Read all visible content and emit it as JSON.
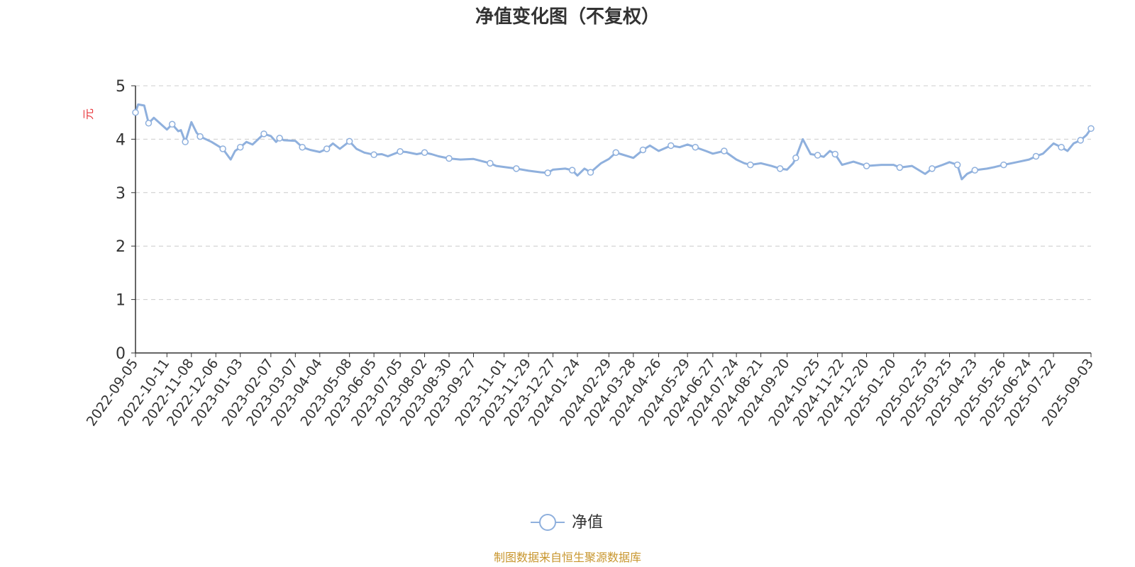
{
  "chart_data": {
    "type": "line",
    "title": "净值变化图（不复权）",
    "ylabel": "元",
    "ylim": [
      0,
      5
    ],
    "yticks": [
      0,
      1,
      2,
      3,
      4,
      5
    ],
    "grid": "horizontal-dashed",
    "legend_placement": "bottom-center",
    "source_note": "制图数据来自恒生聚源数据库",
    "colors": {
      "line": "#8fb0dd",
      "title": "#333333",
      "ylabel": "#e8383d",
      "source": "#c8962e",
      "axis": "#333333",
      "grid": "#cccccc"
    },
    "x_ticks": [
      "2022-09-05",
      "2022-10-11",
      "2022-11-08",
      "2022-12-06",
      "2023-01-03",
      "2023-02-07",
      "2023-03-07",
      "2023-04-04",
      "2023-05-08",
      "2023-06-05",
      "2023-07-05",
      "2023-08-02",
      "2023-08-30",
      "2023-09-27",
      "2023-11-01",
      "2023-11-29",
      "2023-12-27",
      "2024-01-24",
      "2024-02-29",
      "2024-03-28",
      "2024-04-26",
      "2024-05-29",
      "2024-06-27",
      "2024-07-24",
      "2024-08-21",
      "2024-09-20",
      "2024-10-25",
      "2024-11-22",
      "2024-12-20",
      "2025-01-20",
      "2025-02-25",
      "2025-03-25",
      "2025-04-23",
      "2025-05-26",
      "2025-06-24",
      "2025-07-22",
      "2025-09-03"
    ],
    "series": [
      {
        "name": "净值",
        "x": [
          "2022-09-05",
          "2022-09-08",
          "2022-09-15",
          "2022-09-20",
          "2022-09-26",
          "2022-10-11",
          "2022-10-17",
          "2022-10-24",
          "2022-10-27",
          "2022-11-01",
          "2022-11-08",
          "2022-11-14",
          "2022-11-18",
          "2022-12-01",
          "2022-12-06",
          "2022-12-14",
          "2022-12-23",
          "2022-12-28",
          "2023-01-03",
          "2023-01-10",
          "2023-01-17",
          "2023-01-30",
          "2023-02-07",
          "2023-02-13",
          "2023-02-17",
          "2023-02-22",
          "2023-03-07",
          "2023-03-15",
          "2023-03-24",
          "2023-04-04",
          "2023-04-12",
          "2023-04-19",
          "2023-04-27",
          "2023-05-08",
          "2023-05-16",
          "2023-05-25",
          "2023-06-05",
          "2023-06-14",
          "2023-06-21",
          "2023-07-05",
          "2023-07-12",
          "2023-07-24",
          "2023-08-02",
          "2023-08-10",
          "2023-08-18",
          "2023-08-30",
          "2023-09-12",
          "2023-09-27",
          "2023-10-16",
          "2023-10-23",
          "2023-11-01",
          "2023-11-15",
          "2023-11-29",
          "2023-12-13",
          "2023-12-21",
          "2023-12-27",
          "2024-01-10",
          "2024-01-18",
          "2024-01-24",
          "2024-02-01",
          "2024-02-08",
          "2024-02-20",
          "2024-02-29",
          "2024-03-08",
          "2024-03-14",
          "2024-03-28",
          "2024-04-08",
          "2024-04-16",
          "2024-04-26",
          "2024-05-10",
          "2024-05-20",
          "2024-05-29",
          "2024-06-07",
          "2024-06-19",
          "2024-06-27",
          "2024-07-10",
          "2024-07-24",
          "2024-08-02",
          "2024-08-09",
          "2024-08-21",
          "2024-09-02",
          "2024-09-12",
          "2024-09-20",
          "2024-09-27",
          "2024-09-30",
          "2024-10-08",
          "2024-10-17",
          "2024-10-25",
          "2024-11-01",
          "2024-11-08",
          "2024-11-14",
          "2024-11-22",
          "2024-12-05",
          "2024-12-20",
          "2025-01-06",
          "2025-01-20",
          "2025-01-27",
          "2025-02-10",
          "2025-02-25",
          "2025-03-05",
          "2025-03-17",
          "2025-03-25",
          "2025-04-03",
          "2025-04-08",
          "2025-04-14",
          "2025-04-23",
          "2025-05-07",
          "2025-05-16",
          "2025-05-26",
          "2025-06-10",
          "2025-06-24",
          "2025-07-02",
          "2025-07-10",
          "2025-07-22",
          "2025-07-31",
          "2025-08-07",
          "2025-08-14",
          "2025-08-22",
          "2025-08-29",
          "2025-09-03"
        ],
        "y": [
          4.5,
          4.65,
          4.63,
          4.3,
          4.4,
          4.18,
          4.28,
          4.15,
          4.17,
          3.95,
          4.32,
          4.12,
          4.05,
          3.95,
          3.9,
          3.82,
          3.62,
          3.78,
          3.85,
          3.95,
          3.9,
          4.1,
          4.06,
          3.95,
          4.02,
          3.98,
          3.97,
          3.85,
          3.8,
          3.76,
          3.82,
          3.92,
          3.82,
          3.96,
          3.82,
          3.75,
          3.71,
          3.72,
          3.68,
          3.77,
          3.76,
          3.72,
          3.75,
          3.72,
          3.68,
          3.64,
          3.62,
          3.63,
          3.55,
          3.5,
          3.48,
          3.45,
          3.41,
          3.38,
          3.37,
          3.43,
          3.45,
          3.42,
          3.32,
          3.45,
          3.38,
          3.55,
          3.63,
          3.75,
          3.72,
          3.65,
          3.8,
          3.88,
          3.78,
          3.88,
          3.85,
          3.9,
          3.85,
          3.78,
          3.73,
          3.78,
          3.62,
          3.55,
          3.52,
          3.55,
          3.5,
          3.45,
          3.43,
          3.55,
          3.65,
          4.0,
          3.72,
          3.7,
          3.67,
          3.78,
          3.72,
          3.52,
          3.58,
          3.5,
          3.52,
          3.52,
          3.47,
          3.5,
          3.35,
          3.45,
          3.52,
          3.57,
          3.52,
          3.25,
          3.35,
          3.42,
          3.45,
          3.48,
          3.52,
          3.57,
          3.62,
          3.68,
          3.73,
          3.92,
          3.85,
          3.78,
          3.92,
          3.98,
          4.08,
          4.2
        ]
      }
    ]
  }
}
